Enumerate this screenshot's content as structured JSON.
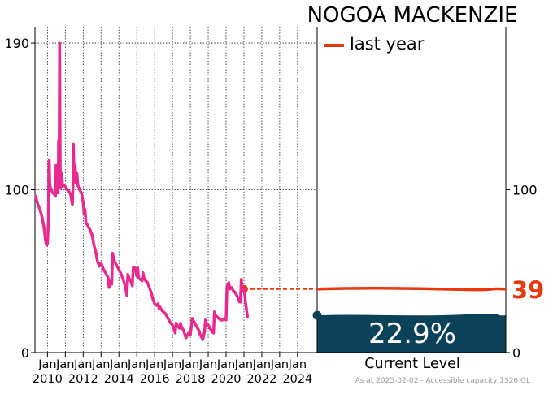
{
  "title": "NOGOA MACKENZIE",
  "legend": {
    "label": "last year",
    "color": "#e8390e"
  },
  "current_level_label": "Current Level",
  "current_percent_text": "22.9%",
  "last_year_value_text": "39",
  "footnote": "As at 2025-02-02 - Accessible capacity 1326 GL",
  "colors": {
    "series": "#e8298f",
    "fill": "#0b4159",
    "last_year": "#e8390e"
  },
  "chart_data": {
    "type": "line",
    "title": "NOGOA MACKENZIE",
    "xlabel": "",
    "ylabel": "",
    "xlim": [
      2009.3,
      2025.1
    ],
    "ylim": [
      0,
      200
    ],
    "yticks": [
      0,
      100,
      190
    ],
    "right_yticks": [
      0,
      100
    ],
    "x_ticks": [
      {
        "x": 2010,
        "line1": "Jan",
        "line2": "2010"
      },
      {
        "x": 2011,
        "line1": "Jan",
        "line2": ""
      },
      {
        "x": 2012,
        "line1": "Jan",
        "line2": "2012"
      },
      {
        "x": 2013,
        "line1": "Jan",
        "line2": ""
      },
      {
        "x": 2014,
        "line1": "Jan",
        "line2": "2014"
      },
      {
        "x": 2015,
        "line1": "Jan",
        "line2": ""
      },
      {
        "x": 2016,
        "line1": "Jan",
        "line2": "2016"
      },
      {
        "x": 2017,
        "line1": "Jan",
        "line2": ""
      },
      {
        "x": 2018,
        "line1": "Jan",
        "line2": "2018"
      },
      {
        "x": 2019,
        "line1": "Jan",
        "line2": ""
      },
      {
        "x": 2020,
        "line1": "Jan",
        "line2": "2020"
      },
      {
        "x": 2021,
        "line1": "Jan",
        "line2": ""
      },
      {
        "x": 2022,
        "line1": "Jan",
        "line2": "2022"
      },
      {
        "x": 2023,
        "line1": "Jan",
        "line2": ""
      },
      {
        "x": 2024,
        "line1": "Jan",
        "line2": "2024"
      }
    ],
    "series": [
      {
        "values": [
          [
            2009.35,
            96
          ],
          [
            2009.4,
            93
          ],
          [
            2009.5,
            90
          ],
          [
            2009.6,
            87
          ],
          [
            2009.7,
            83
          ],
          [
            2009.8,
            77
          ],
          [
            2009.9,
            68
          ],
          [
            2009.95,
            66
          ],
          [
            2010.0,
            67
          ],
          [
            2010.05,
            80
          ],
          [
            2010.08,
            115
          ],
          [
            2010.1,
            118
          ],
          [
            2010.13,
            103
          ],
          [
            2010.2,
            100
          ],
          [
            2010.3,
            98
          ],
          [
            2010.4,
            97
          ],
          [
            2010.45,
            96
          ],
          [
            2010.48,
            115
          ],
          [
            2010.52,
            102
          ],
          [
            2010.55,
            100
          ],
          [
            2010.6,
            98
          ],
          [
            2010.62,
            130
          ],
          [
            2010.65,
            105
          ],
          [
            2010.68,
            190
          ],
          [
            2010.72,
            103
          ],
          [
            2010.75,
            101
          ],
          [
            2010.8,
            110
          ],
          [
            2010.85,
            102
          ],
          [
            2010.9,
            103
          ],
          [
            2011.0,
            102
          ],
          [
            2011.1,
            100
          ],
          [
            2011.2,
            99
          ],
          [
            2011.3,
            97
          ],
          [
            2011.35,
            93
          ],
          [
            2011.4,
            91
          ],
          [
            2011.42,
            100
          ],
          [
            2011.45,
            128
          ],
          [
            2011.5,
            105
          ],
          [
            2011.55,
            115
          ],
          [
            2011.6,
            104
          ],
          [
            2011.65,
            110
          ],
          [
            2011.7,
            103
          ],
          [
            2011.8,
            100
          ],
          [
            2011.9,
            98
          ],
          [
            2012.0,
            92
          ],
          [
            2012.05,
            85
          ],
          [
            2012.1,
            88
          ],
          [
            2012.15,
            80
          ],
          [
            2012.25,
            78
          ],
          [
            2012.4,
            75
          ],
          [
            2012.5,
            72
          ],
          [
            2012.6,
            66
          ],
          [
            2012.7,
            62
          ],
          [
            2012.8,
            56
          ],
          [
            2012.9,
            53
          ],
          [
            2013.0,
            55
          ],
          [
            2013.1,
            52
          ],
          [
            2013.2,
            50
          ],
          [
            2013.3,
            48
          ],
          [
            2013.4,
            46
          ],
          [
            2013.45,
            40
          ],
          [
            2013.5,
            41
          ],
          [
            2013.55,
            44
          ],
          [
            2013.6,
            42
          ],
          [
            2013.65,
            61
          ],
          [
            2013.7,
            58
          ],
          [
            2013.8,
            55
          ],
          [
            2013.9,
            53
          ],
          [
            2014.0,
            51
          ],
          [
            2014.1,
            49
          ],
          [
            2014.2,
            46
          ],
          [
            2014.3,
            43
          ],
          [
            2014.4,
            38
          ],
          [
            2014.45,
            35
          ],
          [
            2014.5,
            48
          ],
          [
            2014.6,
            45
          ],
          [
            2014.7,
            43
          ],
          [
            2014.75,
            41
          ],
          [
            2014.8,
            52
          ],
          [
            2014.9,
            52
          ],
          [
            2014.95,
            50
          ],
          [
            2015.0,
            47
          ],
          [
            2015.05,
            52
          ],
          [
            2015.1,
            46
          ],
          [
            2015.2,
            45
          ],
          [
            2015.3,
            44
          ],
          [
            2015.35,
            49
          ],
          [
            2015.4,
            46
          ],
          [
            2015.5,
            44
          ],
          [
            2015.6,
            43
          ],
          [
            2015.7,
            40
          ],
          [
            2015.8,
            37
          ],
          [
            2015.9,
            33
          ],
          [
            2016.0,
            30
          ],
          [
            2016.1,
            29
          ],
          [
            2016.2,
            30
          ],
          [
            2016.25,
            27
          ],
          [
            2016.3,
            28
          ],
          [
            2016.4,
            26
          ],
          [
            2016.5,
            25
          ],
          [
            2016.6,
            24
          ],
          [
            2016.7,
            22
          ],
          [
            2016.8,
            20
          ],
          [
            2016.9,
            18
          ],
          [
            2017.0,
            17
          ],
          [
            2017.1,
            14
          ],
          [
            2017.15,
            12
          ],
          [
            2017.2,
            18
          ],
          [
            2017.3,
            16
          ],
          [
            2017.4,
            15
          ],
          [
            2017.45,
            18
          ],
          [
            2017.5,
            16
          ],
          [
            2017.6,
            14
          ],
          [
            2017.7,
            11
          ],
          [
            2017.75,
            9
          ],
          [
            2017.8,
            10
          ],
          [
            2017.9,
            12
          ],
          [
            2018.0,
            11
          ],
          [
            2018.1,
            21
          ],
          [
            2018.2,
            19
          ],
          [
            2018.3,
            17
          ],
          [
            2018.4,
            15
          ],
          [
            2018.5,
            13
          ],
          [
            2018.55,
            11
          ],
          [
            2018.6,
            10
          ],
          [
            2018.7,
            8
          ],
          [
            2018.8,
            13
          ],
          [
            2018.85,
            20
          ],
          [
            2018.9,
            18
          ],
          [
            2019.0,
            17
          ],
          [
            2019.1,
            15
          ],
          [
            2019.2,
            13
          ],
          [
            2019.3,
            12
          ],
          [
            2019.35,
            25
          ],
          [
            2019.4,
            23
          ],
          [
            2019.5,
            22
          ],
          [
            2019.6,
            21
          ],
          [
            2019.7,
            20
          ],
          [
            2019.8,
            20
          ],
          [
            2019.9,
            21
          ],
          [
            2020.0,
            20
          ],
          [
            2020.05,
            40
          ],
          [
            2020.1,
            42
          ],
          [
            2020.15,
            43
          ],
          [
            2020.2,
            39
          ],
          [
            2020.3,
            40
          ],
          [
            2020.4,
            38
          ],
          [
            2020.5,
            37
          ],
          [
            2020.6,
            35
          ],
          [
            2020.7,
            33
          ],
          [
            2020.75,
            31
          ],
          [
            2020.8,
            31
          ],
          [
            2020.85,
            45
          ],
          [
            2020.9,
            40
          ],
          [
            2021.0,
            39
          ],
          [
            2021.1,
            30
          ],
          [
            2021.2,
            22
          ]
        ]
      }
    ],
    "last_year": {
      "value": 39,
      "x_start": 2021.0,
      "x_end": 2025.05
    },
    "current": {
      "percent": 22.9,
      "level": 22.9
    }
  }
}
